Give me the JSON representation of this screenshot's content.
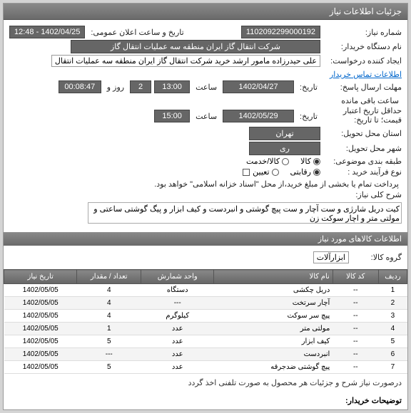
{
  "panel_title": "جزئیات اطلاعات نیاز",
  "fields": {
    "need_no_lbl": "شماره نیاز:",
    "need_no": "1102092299000192",
    "ann_lbl": "تاریخ و ساعت اعلان عمومی:",
    "ann_val": "1402/04/25 - 12:48",
    "device_lbl": "نام دستگاه خریدار:",
    "device_val": "شرکت انتقال گاز ایران منطقه سه عملیات انتقال گاز",
    "creator_lbl": "ایجاد کننده درخواست:",
    "creator_val": "علی حیدرزاده مامور ارشد خرید شرکت انتقال گاز ایران منطقه سه عملیات انتقال",
    "contact_link": "اطلاعات تماس خریدار",
    "deadline_lbl": "مهلت ارسال پاسخ:",
    "date_lbl": "تاریخ:",
    "deadline_date": "1402/04/27",
    "time_lbl": "ساعت",
    "deadline_time": "13:00",
    "day_lbl": "روز و",
    "days": "2",
    "remain_time": "00:08:47",
    "remain_lbl": "ساعت باقی مانده",
    "min_valid_lbl": "حداقل تاریخ اعتبار",
    "price_to_lbl": "قیمت؛ تا تاریخ:",
    "valid_date": "1402/05/29",
    "valid_time": "15:00",
    "loc_lbl": "استان محل تحویل:",
    "loc_val": "تهران",
    "city_lbl": "شهر محل تحویل:",
    "city_val": "ری",
    "cat_lbl": "طبقه بندی موضوعی:",
    "cat_opt1": "کالا",
    "cat_opt2": "کالا/خدمت",
    "buy_lbl": "نوع فرآیند خرید :",
    "buy_opt1": "رقابتی",
    "buy_opt2": "تعیین",
    "pay_note": "پرداخت تمام یا بخشی از مبلغ خرید،از محل \"اسناد خزانه اسلامی\" خواهد بود.",
    "desc_lbl": "شرح کلی نیاز:",
    "desc_val": "کیت دریل شارژی و ست آچار و ست پیچ گوشتی و انبردست و کیف ابزار و پیگ گوشتی ساعتی و مولتی متر و اچار سوکت زن",
    "items_hdr": "اطلاعات کالاهای مورد نیاز",
    "grp_lbl": "گروه کالا:",
    "grp_val": "ابزارآلات",
    "buyer_note_lbl": "توضیحات خریدار:",
    "buyer_note": "درصورت نیاز شرح و جزئیات هر محصول به صورت تلفنی اخذ گردد"
  },
  "table": {
    "headers": {
      "r": "ردیف",
      "code": "کد کالا",
      "name": "نام کالا",
      "unit": "واحد شمارش",
      "qty": "تعداد / مقدار",
      "date": "تاریخ نیاز"
    },
    "rows": [
      {
        "r": "1",
        "code": "--",
        "name": "دریل چکشی",
        "unit": "دستگاه",
        "qty": "4",
        "date": "1402/05/05"
      },
      {
        "r": "2",
        "code": "--",
        "name": "آچار سرتخت",
        "unit": "---",
        "qty": "4",
        "date": "1402/05/05"
      },
      {
        "r": "3",
        "code": "--",
        "name": "پیچ سر سوکت",
        "unit": "کیلوگرم",
        "qty": "4",
        "date": "1402/05/05"
      },
      {
        "r": "4",
        "code": "--",
        "name": "مولتی متر",
        "unit": "عدد",
        "qty": "1",
        "date": "1402/05/05"
      },
      {
        "r": "5",
        "code": "--",
        "name": "کیف ابزار",
        "unit": "عدد",
        "qty": "5",
        "date": "1402/05/05"
      },
      {
        "r": "6",
        "code": "--",
        "name": "انبردست",
        "unit": "عدد",
        "qty": "---",
        "date": "1402/05/05"
      },
      {
        "r": "7",
        "code": "--",
        "name": "پیچ گوشتی ضدجرقه",
        "unit": "عدد",
        "qty": "5",
        "date": "1402/05/05"
      }
    ]
  },
  "colors": {
    "hdr_bg": "#767676",
    "link": "#0066cc"
  }
}
